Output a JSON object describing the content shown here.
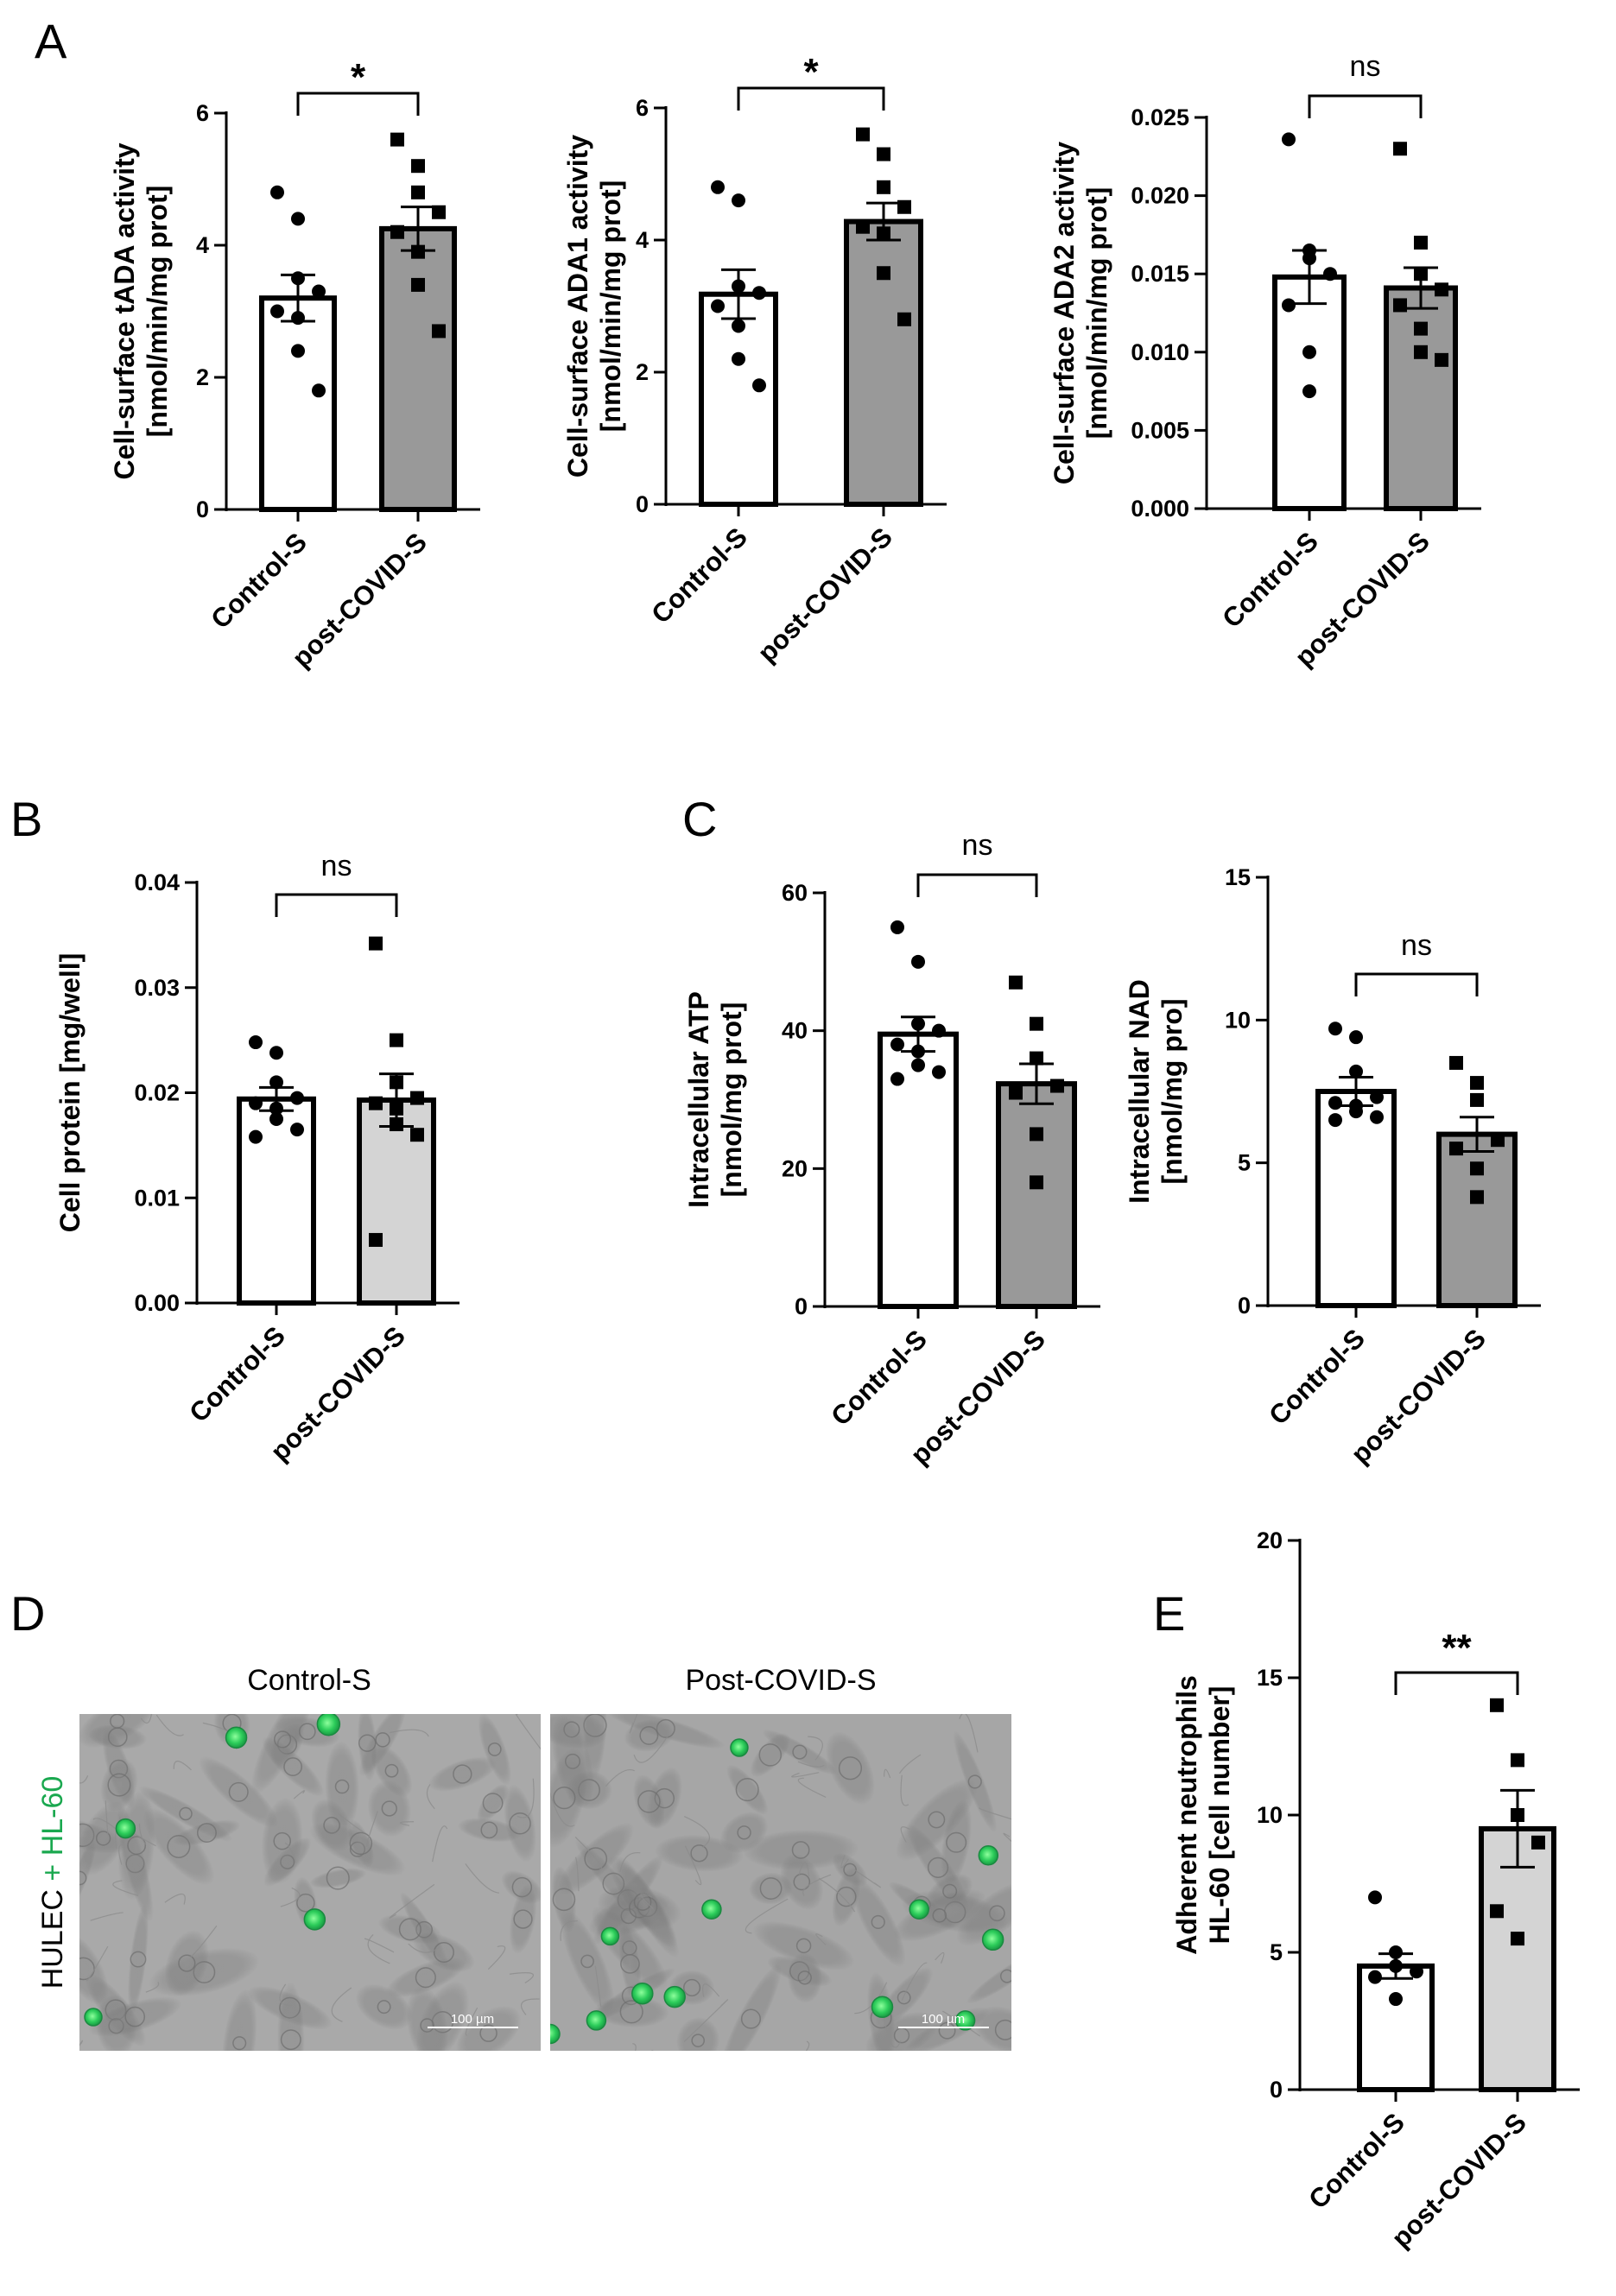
{
  "panels": {
    "A": "A",
    "B": "B",
    "C": "C",
    "D": "D",
    "E": "E"
  },
  "colors": {
    "control_bar": "#ffffff",
    "post_dark_bar": "#999999",
    "post_light_bar": "#d4d4d4",
    "hl60_green": "#1aa84f",
    "micrograph_bg": "#a9a9a9"
  },
  "chart_data": [
    {
      "id": "tADA",
      "type": "bar",
      "ylabel": [
        "Cell-surface tADA activity",
        "[nmol/min/mg prot]"
      ],
      "categories": [
        "Control-S",
        "post-COVID-S"
      ],
      "ylim": [
        0,
        6
      ],
      "yticks": [
        "0",
        "2",
        "4",
        "6"
      ],
      "yticks_values": [
        0,
        2,
        4,
        6
      ],
      "means": [
        3.2,
        4.25
      ],
      "sem": [
        0.35,
        0.33
      ],
      "points": [
        [
          4.8,
          4.4,
          3.5,
          3.3,
          3.0,
          2.9,
          2.4,
          1.8
        ],
        [
          5.6,
          5.2,
          4.8,
          4.5,
          4.2,
          3.9,
          3.4,
          2.7
        ]
      ],
      "comparison": "*",
      "post_color": "#999999"
    },
    {
      "id": "ADA1",
      "type": "bar",
      "ylabel": [
        "Cell-surface ADA1 activity",
        "[nmol/min/mg prot]"
      ],
      "categories": [
        "Control-S",
        "post-COVID-S"
      ],
      "ylim": [
        0,
        6
      ],
      "yticks": [
        "0",
        "2",
        "4",
        "6"
      ],
      "yticks_values": [
        0,
        2,
        4,
        6
      ],
      "means": [
        3.18,
        4.28
      ],
      "sem": [
        0.37,
        0.28
      ],
      "points": [
        [
          4.8,
          4.6,
          3.3,
          3.2,
          3.0,
          2.7,
          2.2,
          1.8
        ],
        [
          5.6,
          5.3,
          4.8,
          4.5,
          4.2,
          4.1,
          3.5,
          2.8
        ]
      ],
      "comparison": "*",
      "post_color": "#999999"
    },
    {
      "id": "ADA2",
      "type": "bar",
      "ylabel": [
        "Cell-surface ADA2 activity",
        "[nmol/min/mg prot]"
      ],
      "categories": [
        "Control-S",
        "post-COVID-S"
      ],
      "ylim": [
        0,
        0.025
      ],
      "yticks": [
        "0.000",
        "0.005",
        "0.010",
        "0.015",
        "0.020",
        "0.025"
      ],
      "yticks_values": [
        0,
        0.005,
        0.01,
        0.015,
        0.02,
        0.025
      ],
      "means": [
        0.0148,
        0.0141
      ],
      "sem": [
        0.0017,
        0.0013
      ],
      "points": [
        [
          0.0236,
          0.0165,
          0.016,
          0.015,
          0.013,
          0.01,
          0.0075
        ],
        [
          0.023,
          0.017,
          0.015,
          0.014,
          0.013,
          0.0115,
          0.01,
          0.0095
        ]
      ],
      "comparison": "ns",
      "post_color": "#999999"
    },
    {
      "id": "protein",
      "type": "bar",
      "ylabel": [
        "Cell protein [mg/well]"
      ],
      "categories": [
        "Control-S",
        "post-COVID-S"
      ],
      "ylim": [
        0,
        0.04
      ],
      "yticks": [
        "0.00",
        "0.01",
        "0.02",
        "0.03",
        "0.04"
      ],
      "yticks_values": [
        0,
        0.01,
        0.02,
        0.03,
        0.04
      ],
      "means": [
        0.0194,
        0.0193
      ],
      "sem": [
        0.0011,
        0.0025
      ],
      "points": [
        [
          0.0248,
          0.0238,
          0.021,
          0.0195,
          0.019,
          0.0185,
          0.0175,
          0.0165,
          0.0158
        ],
        [
          0.0342,
          0.025,
          0.021,
          0.0195,
          0.019,
          0.0185,
          0.017,
          0.016,
          0.006
        ]
      ],
      "comparison": "ns",
      "post_color": "#d4d4d4"
    },
    {
      "id": "ATP",
      "type": "bar",
      "ylabel": [
        "Intracellular ATP",
        "[nmol/mg prot]"
      ],
      "categories": [
        "Control-S",
        "post-COVID-S"
      ],
      "ylim": [
        0,
        60
      ],
      "yticks": [
        "0",
        "20",
        "40",
        "60"
      ],
      "yticks_values": [
        0,
        20,
        40,
        60
      ],
      "means": [
        39.5,
        32.3
      ],
      "sem": [
        2.5,
        2.9
      ],
      "points": [
        [
          55,
          50,
          41,
          40,
          38,
          37,
          35,
          34,
          33
        ],
        [
          47,
          41,
          36,
          32,
          31,
          25,
          18
        ]
      ],
      "comparison": "ns",
      "post_color": "#999999"
    },
    {
      "id": "NAD",
      "type": "bar",
      "ylabel": [
        "Intracellular NAD",
        "[nmol/mg pro]"
      ],
      "categories": [
        "Control-S",
        "post-COVID-S"
      ],
      "ylim": [
        0,
        15
      ],
      "yticks": [
        "0",
        "5",
        "10",
        "15"
      ],
      "yticks_values": [
        0,
        5,
        10,
        15
      ],
      "means": [
        7.5,
        6.0
      ],
      "sem": [
        0.5,
        0.6
      ],
      "points": [
        [
          9.7,
          9.4,
          8.2,
          7.3,
          7.1,
          7.0,
          6.8,
          6.6,
          6.5
        ],
        [
          8.5,
          7.8,
          7.2,
          5.8,
          5.5,
          4.8,
          3.8
        ]
      ],
      "comparison": "ns",
      "post_color": "#999999"
    },
    {
      "id": "neutrophils",
      "type": "bar",
      "ylabel": [
        "Adherent neutrophils",
        "HL-60 [cell number]"
      ],
      "categories": [
        "Control-S",
        "post-COVID-S"
      ],
      "ylim": [
        0,
        20
      ],
      "yticks": [
        "0",
        "5",
        "10",
        "15",
        "20"
      ],
      "yticks_values": [
        0,
        5,
        10,
        15,
        20
      ],
      "means": [
        4.5,
        9.5
      ],
      "sem": [
        0.45,
        1.4
      ],
      "points": [
        [
          7,
          5,
          4.5,
          4.3,
          4.1,
          3.3
        ],
        [
          14,
          12,
          10,
          9,
          6.5,
          5.5
        ]
      ],
      "comparison": "**",
      "post_color": "#d4d4d4"
    }
  ],
  "panelD": {
    "left_title": "Control-S",
    "right_title": "Post-COVID-S",
    "side_label_part1": "HULEC",
    "side_label_part2": " + HL-60",
    "scale_label": "100 µm"
  }
}
